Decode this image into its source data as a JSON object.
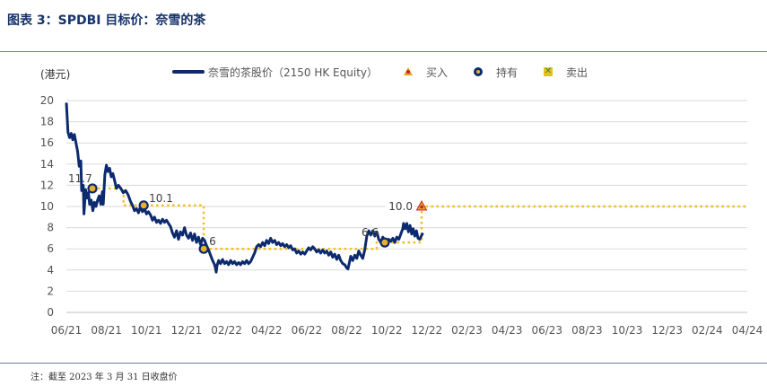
{
  "header": {
    "title": "图表 3：SPDBI 目标价：奈雪的茶"
  },
  "footer": {
    "note": "注：截至 2023 年 3 月 31 日收盘价"
  },
  "legend": {
    "price_label": "奈雪的茶股价（2150 HK Equity）",
    "buy_label": "买入",
    "hold_label": "持有",
    "sell_label": "卖出"
  },
  "colors": {
    "price": "#0c2a6e",
    "target": "#f0c020",
    "grid": "#d9d9d9",
    "buy": "#e8a21b",
    "hold": "#e8b12a",
    "sell": "#e8c21b"
  },
  "chart_data": {
    "type": "line",
    "y_unit": "(港元)",
    "ylim": [
      0,
      20
    ],
    "yticks": [
      "0",
      "2",
      "4",
      "6",
      "8",
      "10",
      "12",
      "14",
      "16",
      "18",
      "20"
    ],
    "x_ticks": [
      "06/21",
      "08/21",
      "10/21",
      "12/21",
      "02/22",
      "04/22",
      "06/22",
      "08/22",
      "10/22",
      "12/22",
      "02/23",
      "04/23",
      "06/23",
      "08/23",
      "10/23",
      "12/23",
      "02/24",
      "04/24"
    ],
    "grid": true,
    "legend_position": "top",
    "series": [
      {
        "name": "奈雪的茶股价（2150 HK Equity）",
        "points": [
          [
            0.0,
            19.8
          ],
          [
            0.04,
            17.0
          ],
          [
            0.08,
            16.5
          ],
          [
            0.12,
            16.9
          ],
          [
            0.16,
            16.3
          ],
          [
            0.2,
            16.8
          ],
          [
            0.24,
            16.0
          ],
          [
            0.28,
            15.2
          ],
          [
            0.32,
            13.8
          ],
          [
            0.36,
            14.3
          ],
          [
            0.38,
            11.5
          ],
          [
            0.42,
            12.0
          ],
          [
            0.44,
            9.3
          ],
          [
            0.48,
            11.6
          ],
          [
            0.52,
            10.8
          ],
          [
            0.55,
            11.3
          ],
          [
            0.58,
            10.2
          ],
          [
            0.62,
            10.6
          ],
          [
            0.66,
            9.6
          ],
          [
            0.7,
            10.4
          ],
          [
            0.74,
            10.0
          ],
          [
            0.78,
            10.6
          ],
          [
            0.82,
            11.0
          ],
          [
            0.86,
            10.2
          ],
          [
            0.9,
            11.4
          ],
          [
            0.92,
            10.2
          ],
          [
            0.96,
            13.0
          ],
          [
            1.0,
            13.9
          ],
          [
            1.04,
            13.3
          ],
          [
            1.08,
            13.6
          ],
          [
            1.12,
            12.8
          ],
          [
            1.16,
            13.1
          ],
          [
            1.2,
            12.5
          ],
          [
            1.25,
            11.7
          ],
          [
            1.3,
            12.0
          ],
          [
            1.36,
            11.7
          ],
          [
            1.42,
            11.3
          ],
          [
            1.48,
            11.5
          ],
          [
            1.54,
            11.1
          ],
          [
            1.6,
            10.5
          ],
          [
            1.65,
            10.1
          ],
          [
            1.7,
            9.6
          ],
          [
            1.75,
            9.8
          ],
          [
            1.8,
            9.4
          ],
          [
            1.85,
            10.0
          ],
          [
            1.9,
            9.5
          ],
          [
            1.95,
            9.8
          ],
          [
            2.0,
            9.3
          ],
          [
            2.05,
            9.5
          ],
          [
            2.1,
            9.2
          ],
          [
            2.15,
            8.7
          ],
          [
            2.2,
            9.0
          ],
          [
            2.25,
            8.5
          ],
          [
            2.3,
            8.7
          ],
          [
            2.35,
            8.4
          ],
          [
            2.4,
            8.8
          ],
          [
            2.45,
            8.5
          ],
          [
            2.5,
            8.7
          ],
          [
            2.55,
            8.4
          ],
          [
            2.6,
            8.1
          ],
          [
            2.65,
            7.5
          ],
          [
            2.7,
            7.1
          ],
          [
            2.75,
            7.7
          ],
          [
            2.8,
            6.9
          ],
          [
            2.85,
            7.6
          ],
          [
            2.9,
            7.3
          ],
          [
            2.95,
            8.0
          ],
          [
            3.0,
            7.3
          ],
          [
            3.05,
            7.0
          ],
          [
            3.1,
            7.5
          ],
          [
            3.15,
            6.8
          ],
          [
            3.2,
            7.4
          ],
          [
            3.25,
            6.6
          ],
          [
            3.3,
            7.1
          ],
          [
            3.35,
            6.4
          ],
          [
            3.4,
            7.0
          ],
          [
            3.45,
            6.8
          ],
          [
            3.5,
            6.3
          ],
          [
            3.55,
            5.9
          ],
          [
            3.6,
            5.4
          ],
          [
            3.65,
            4.9
          ],
          [
            3.7,
            4.5
          ],
          [
            3.72,
            4.2
          ],
          [
            3.74,
            3.8
          ],
          [
            3.76,
            4.4
          ],
          [
            3.8,
            4.9
          ],
          [
            3.85,
            4.6
          ],
          [
            3.9,
            5.0
          ],
          [
            3.95,
            4.6
          ],
          [
            4.0,
            4.8
          ],
          [
            4.05,
            4.5
          ],
          [
            4.1,
            4.9
          ],
          [
            4.15,
            4.6
          ],
          [
            4.2,
            4.8
          ],
          [
            4.25,
            4.5
          ],
          [
            4.3,
            4.7
          ],
          [
            4.35,
            4.5
          ],
          [
            4.4,
            4.8
          ],
          [
            4.45,
            4.6
          ],
          [
            4.5,
            4.9
          ],
          [
            4.55,
            4.6
          ],
          [
            4.6,
            4.8
          ],
          [
            4.65,
            5.2
          ],
          [
            4.7,
            5.6
          ],
          [
            4.75,
            6.2
          ],
          [
            4.8,
            6.4
          ],
          [
            4.85,
            6.2
          ],
          [
            4.9,
            6.6
          ],
          [
            4.95,
            6.3
          ],
          [
            5.0,
            6.8
          ],
          [
            5.05,
            6.5
          ],
          [
            5.1,
            7.0
          ],
          [
            5.15,
            6.6
          ],
          [
            5.2,
            6.8
          ],
          [
            5.25,
            6.4
          ],
          [
            5.3,
            6.6
          ],
          [
            5.35,
            6.3
          ],
          [
            5.4,
            6.5
          ],
          [
            5.45,
            6.2
          ],
          [
            5.5,
            6.4
          ],
          [
            5.55,
            6.1
          ],
          [
            5.6,
            6.3
          ],
          [
            5.65,
            5.9
          ],
          [
            5.7,
            6.0
          ],
          [
            5.75,
            5.6
          ],
          [
            5.8,
            5.8
          ],
          [
            5.85,
            5.5
          ],
          [
            5.9,
            5.7
          ],
          [
            5.95,
            5.5
          ],
          [
            6.0,
            5.8
          ],
          [
            6.05,
            6.1
          ],
          [
            6.1,
            5.9
          ],
          [
            6.15,
            6.2
          ],
          [
            6.2,
            6.0
          ],
          [
            6.25,
            5.7
          ],
          [
            6.3,
            5.9
          ],
          [
            6.35,
            5.6
          ],
          [
            6.4,
            5.9
          ],
          [
            6.45,
            5.6
          ],
          [
            6.5,
            5.8
          ],
          [
            6.55,
            5.4
          ],
          [
            6.6,
            5.7
          ],
          [
            6.65,
            5.2
          ],
          [
            6.7,
            5.5
          ],
          [
            6.75,
            5.0
          ],
          [
            6.8,
            5.4
          ],
          [
            6.85,
            4.9
          ],
          [
            6.9,
            4.6
          ],
          [
            6.95,
            4.5
          ],
          [
            7.0,
            4.2
          ],
          [
            7.03,
            4.1
          ],
          [
            7.06,
            4.6
          ],
          [
            7.1,
            5.3
          ],
          [
            7.15,
            4.9
          ],
          [
            7.2,
            5.4
          ],
          [
            7.25,
            5.1
          ],
          [
            7.3,
            5.8
          ],
          [
            7.35,
            5.4
          ],
          [
            7.4,
            5.1
          ],
          [
            7.45,
            5.9
          ],
          [
            7.5,
            7.2
          ],
          [
            7.55,
            7.7
          ],
          [
            7.6,
            7.3
          ],
          [
            7.65,
            7.7
          ],
          [
            7.7,
            7.2
          ],
          [
            7.75,
            7.6
          ],
          [
            7.8,
            6.9
          ],
          [
            7.85,
            6.6
          ],
          [
            7.9,
            7.1
          ],
          [
            7.95,
            6.8
          ],
          [
            8.0,
            6.5
          ],
          [
            8.05,
            6.9
          ],
          [
            8.1,
            6.7
          ],
          [
            8.15,
            7.0
          ],
          [
            8.2,
            6.6
          ],
          [
            8.25,
            7.1
          ],
          [
            8.3,
            6.9
          ],
          [
            8.35,
            7.4
          ],
          [
            8.4,
            7.9
          ],
          [
            8.42,
            8.4
          ],
          [
            8.46,
            7.9
          ],
          [
            8.5,
            8.4
          ],
          [
            8.54,
            7.6
          ],
          [
            8.58,
            8.2
          ],
          [
            8.62,
            7.4
          ],
          [
            8.66,
            7.9
          ],
          [
            8.7,
            7.2
          ],
          [
            8.74,
            7.7
          ],
          [
            8.78,
            7.0
          ],
          [
            8.82,
            6.9
          ],
          [
            8.86,
            7.2
          ],
          [
            8.9,
            7.5
          ]
        ]
      }
    ],
    "target_price": {
      "name": "目标价",
      "steps": [
        [
          0.65,
          11.7
        ],
        [
          1.43,
          11.7
        ],
        [
          1.43,
          10.1
        ],
        [
          3.43,
          10.1
        ],
        [
          3.43,
          6.0
        ],
        [
          7.75,
          6.0
        ],
        [
          7.75,
          6.6
        ],
        [
          8.87,
          6.6
        ],
        [
          8.87,
          10.0
        ],
        [
          17.0,
          10.0
        ]
      ]
    },
    "markers": [
      {
        "type": "hold",
        "x": 0.65,
        "y": 11.7,
        "label": "11.7"
      },
      {
        "type": "hold",
        "x": 1.93,
        "y": 10.1,
        "label": "10.1"
      },
      {
        "type": "hold",
        "x": 3.43,
        "y": 6.0,
        "label": "6"
      },
      {
        "type": "hold",
        "x": 7.95,
        "y": 6.6,
        "label": "6.6"
      },
      {
        "type": "buy",
        "x": 8.87,
        "y": 10.0,
        "label": "10.0"
      }
    ]
  }
}
